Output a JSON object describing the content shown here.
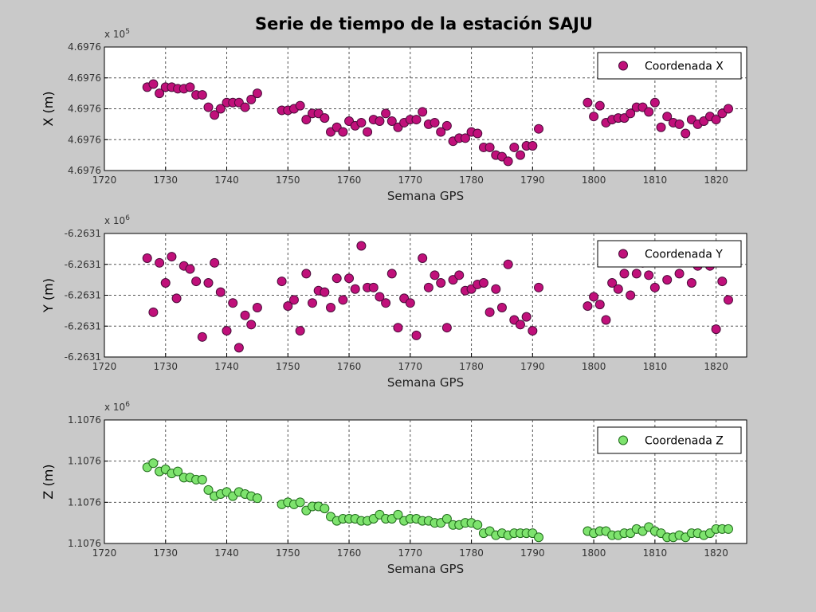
{
  "title": "Serie de tiempo de la estación SAJU",
  "colors": {
    "background": "#c9c9c9",
    "plot_bg": "#ffffff",
    "purple": "#c0107a",
    "purple_edge": "#4a0d3a",
    "green": "#7ee36e",
    "green_edge": "#1f6b1a",
    "grid": "#555555"
  },
  "chart_data": [
    {
      "type": "scatter",
      "id": "x",
      "xlabel": "Semana GPS",
      "ylabel": "X (m)",
      "exponent": {
        "base": "x 10",
        "power": "5"
      },
      "xlim": [
        1720,
        1825
      ],
      "x_ticks": [
        "1720",
        "1730",
        "1740",
        "1750",
        "1760",
        "1770",
        "1780",
        "1790",
        "1800",
        "1810",
        "1820"
      ],
      "ylim": [
        0,
        4
      ],
      "y_ticks": [
        "4.6976",
        "4.6976",
        "4.6976",
        "4.6976",
        "4.6976"
      ],
      "legend": {
        "label": "Coordenada X",
        "position": "top-right"
      },
      "series": [
        {
          "name": "Coordenada X",
          "color": "#c0107a",
          "points": [
            [
              1727,
              2.7
            ],
            [
              1728,
              2.8
            ],
            [
              1729,
              2.5
            ],
            [
              1730,
              2.7
            ],
            [
              1731,
              2.7
            ],
            [
              1732,
              2.65
            ],
            [
              1733,
              2.65
            ],
            [
              1734,
              2.7
            ],
            [
              1735,
              2.45
            ],
            [
              1736,
              2.45
            ],
            [
              1737,
              2.05
            ],
            [
              1738,
              1.8
            ],
            [
              1739,
              2.0
            ],
            [
              1740,
              2.2
            ],
            [
              1741,
              2.2
            ],
            [
              1742,
              2.2
            ],
            [
              1743,
              2.05
            ],
            [
              1744,
              2.3
            ],
            [
              1745,
              2.5
            ],
            [
              1749,
              1.95
            ],
            [
              1750,
              1.95
            ],
            [
              1751,
              2.0
            ],
            [
              1752,
              2.1
            ],
            [
              1753,
              1.65
            ],
            [
              1754,
              1.85
            ],
            [
              1755,
              1.85
            ],
            [
              1756,
              1.7
            ],
            [
              1757,
              1.25
            ],
            [
              1758,
              1.4
            ],
            [
              1759,
              1.25
            ],
            [
              1760,
              1.6
            ],
            [
              1761,
              1.45
            ],
            [
              1762,
              1.55
            ],
            [
              1763,
              1.25
            ],
            [
              1764,
              1.65
            ],
            [
              1765,
              1.6
            ],
            [
              1766,
              1.85
            ],
            [
              1767,
              1.6
            ],
            [
              1768,
              1.4
            ],
            [
              1769,
              1.55
            ],
            [
              1770,
              1.65
            ],
            [
              1771,
              1.65
            ],
            [
              1772,
              1.9
            ],
            [
              1773,
              1.5
            ],
            [
              1774,
              1.55
            ],
            [
              1775,
              1.25
            ],
            [
              1776,
              1.45
            ],
            [
              1777,
              0.95
            ],
            [
              1778,
              1.05
            ],
            [
              1779,
              1.05
            ],
            [
              1780,
              1.25
            ],
            [
              1781,
              1.2
            ],
            [
              1782,
              0.75
            ],
            [
              1783,
              0.75
            ],
            [
              1784,
              0.5
            ],
            [
              1785,
              0.45
            ],
            [
              1786,
              0.3
            ],
            [
              1787,
              0.75
            ],
            [
              1788,
              0.5
            ],
            [
              1789,
              0.8
            ],
            [
              1790,
              0.8
            ],
            [
              1791,
              1.35
            ],
            [
              1799,
              2.2
            ],
            [
              1800,
              1.75
            ],
            [
              1801,
              2.1
            ],
            [
              1802,
              1.55
            ],
            [
              1803,
              1.65
            ],
            [
              1804,
              1.7
            ],
            [
              1805,
              1.7
            ],
            [
              1806,
              1.85
            ],
            [
              1807,
              2.05
            ],
            [
              1808,
              2.05
            ],
            [
              1809,
              1.9
            ],
            [
              1810,
              2.2
            ],
            [
              1811,
              1.4
            ],
            [
              1812,
              1.75
            ],
            [
              1813,
              1.55
            ],
            [
              1814,
              1.5
            ],
            [
              1815,
              1.2
            ],
            [
              1816,
              1.65
            ],
            [
              1817,
              1.5
            ],
            [
              1818,
              1.6
            ],
            [
              1819,
              1.75
            ],
            [
              1820,
              1.65
            ],
            [
              1821,
              1.85
            ],
            [
              1822,
              2.0
            ]
          ]
        }
      ]
    },
    {
      "type": "scatter",
      "id": "y",
      "xlabel": "Semana GPS",
      "ylabel": "Y (m)",
      "exponent": {
        "base": "x 10",
        "power": "6"
      },
      "xlim": [
        1720,
        1825
      ],
      "x_ticks": [
        "1720",
        "1730",
        "1740",
        "1750",
        "1760",
        "1770",
        "1780",
        "1790",
        "1800",
        "1810",
        "1820"
      ],
      "ylim": [
        0,
        4
      ],
      "y_ticks": [
        "-6.2631",
        "-6.2631",
        "-6.2631",
        "-6.2631",
        "-6.2631"
      ],
      "legend": {
        "label": "Coordenada Y",
        "position": "top-right"
      },
      "series": [
        {
          "name": "Coordenada Y",
          "color": "#c0107a",
          "points": [
            [
              1727,
              3.2
            ],
            [
              1728,
              1.45
            ],
            [
              1729,
              3.05
            ],
            [
              1730,
              2.4
            ],
            [
              1731,
              3.25
            ],
            [
              1731.8,
              1.9
            ],
            [
              1733,
              2.95
            ],
            [
              1734,
              2.85
            ],
            [
              1735,
              2.45
            ],
            [
              1736,
              0.65
            ],
            [
              1737,
              2.4
            ],
            [
              1738,
              3.05
            ],
            [
              1739,
              2.1
            ],
            [
              1740,
              0.85
            ],
            [
              1741,
              1.75
            ],
            [
              1742,
              0.3
            ],
            [
              1743,
              1.35
            ],
            [
              1744,
              1.05
            ],
            [
              1745,
              1.6
            ],
            [
              1749,
              2.45
            ],
            [
              1750,
              1.65
            ],
            [
              1751,
              1.85
            ],
            [
              1752,
              0.85
            ],
            [
              1753,
              2.7
            ],
            [
              1754,
              1.75
            ],
            [
              1755,
              2.15
            ],
            [
              1756,
              2.1
            ],
            [
              1757,
              1.6
            ],
            [
              1758,
              2.55
            ],
            [
              1759,
              1.85
            ],
            [
              1760,
              2.55
            ],
            [
              1761,
              2.2
            ],
            [
              1762,
              3.6
            ],
            [
              1763,
              2.25
            ],
            [
              1764,
              2.25
            ],
            [
              1765,
              1.95
            ],
            [
              1766,
              1.75
            ],
            [
              1767,
              2.7
            ],
            [
              1768,
              0.95
            ],
            [
              1769,
              1.9
            ],
            [
              1770,
              1.75
            ],
            [
              1771,
              0.7
            ],
            [
              1772,
              3.2
            ],
            [
              1773,
              2.25
            ],
            [
              1774,
              2.65
            ],
            [
              1775,
              2.4
            ],
            [
              1776,
              0.95
            ],
            [
              1777,
              2.5
            ],
            [
              1778,
              2.65
            ],
            [
              1779,
              2.15
            ],
            [
              1780,
              2.2
            ],
            [
              1781,
              2.35
            ],
            [
              1782,
              2.4
            ],
            [
              1783,
              1.45
            ],
            [
              1784,
              2.2
            ],
            [
              1785,
              1.6
            ],
            [
              1786,
              3.0
            ],
            [
              1787,
              1.2
            ],
            [
              1788,
              1.05
            ],
            [
              1789,
              1.3
            ],
            [
              1790,
              0.85
            ],
            [
              1791,
              2.25
            ],
            [
              1799,
              1.65
            ],
            [
              1800,
              1.95
            ],
            [
              1801,
              1.7
            ],
            [
              1802,
              1.2
            ],
            [
              1803,
              2.4
            ],
            [
              1804,
              2.2
            ],
            [
              1805,
              2.7
            ],
            [
              1806,
              2.0
            ],
            [
              1807,
              2.7
            ],
            [
              1808,
              3.05
            ],
            [
              1809,
              2.65
            ],
            [
              1810,
              2.25
            ],
            [
              1812,
              2.5
            ],
            [
              1814,
              2.7
            ],
            [
              1816,
              2.4
            ],
            [
              1817,
              2.95
            ],
            [
              1819,
              2.95
            ],
            [
              1820,
              0.9
            ],
            [
              1821,
              2.45
            ],
            [
              1822,
              1.85
            ]
          ]
        }
      ]
    },
    {
      "type": "scatter",
      "id": "z",
      "xlabel": "Semana GPS",
      "ylabel": "Z (m)",
      "exponent": {
        "base": "x 10",
        "power": "6"
      },
      "xlim": [
        1720,
        1825
      ],
      "x_ticks": [
        "1720",
        "1730",
        "1740",
        "1750",
        "1760",
        "1770",
        "1780",
        "1790",
        "1800",
        "1810",
        "1820"
      ],
      "ylim": [
        0,
        3
      ],
      "y_ticks": [
        "1.1076",
        "1.1076",
        "1.1076",
        "1.1076"
      ],
      "legend": {
        "label": "Coordenada Z",
        "position": "top-right"
      },
      "series": [
        {
          "name": "Coordenada Z",
          "color": "#7ee36e",
          "points": [
            [
              1727,
              1.85
            ],
            [
              1728,
              1.95
            ],
            [
              1729,
              1.75
            ],
            [
              1730,
              1.8
            ],
            [
              1731,
              1.7
            ],
            [
              1732,
              1.75
            ],
            [
              1733,
              1.6
            ],
            [
              1734,
              1.6
            ],
            [
              1735,
              1.55
            ],
            [
              1736,
              1.55
            ],
            [
              1737,
              1.3
            ],
            [
              1738,
              1.15
            ],
            [
              1739,
              1.2
            ],
            [
              1740,
              1.25
            ],
            [
              1741,
              1.15
            ],
            [
              1742,
              1.25
            ],
            [
              1743,
              1.2
            ],
            [
              1744,
              1.15
            ],
            [
              1745,
              1.1
            ],
            [
              1749,
              0.95
            ],
            [
              1750,
              1.0
            ],
            [
              1751,
              0.95
            ],
            [
              1752,
              1.0
            ],
            [
              1753,
              0.8
            ],
            [
              1754,
              0.9
            ],
            [
              1755,
              0.9
            ],
            [
              1756,
              0.85
            ],
            [
              1757,
              0.65
            ],
            [
              1758,
              0.55
            ],
            [
              1759,
              0.6
            ],
            [
              1760,
              0.6
            ],
            [
              1761,
              0.6
            ],
            [
              1762,
              0.55
            ],
            [
              1763,
              0.55
            ],
            [
              1764,
              0.6
            ],
            [
              1765,
              0.7
            ],
            [
              1766,
              0.6
            ],
            [
              1767,
              0.6
            ],
            [
              1768,
              0.7
            ],
            [
              1769,
              0.55
            ],
            [
              1770,
              0.6
            ],
            [
              1771,
              0.6
            ],
            [
              1772,
              0.55
            ],
            [
              1773,
              0.55
            ],
            [
              1774,
              0.5
            ],
            [
              1775,
              0.5
            ],
            [
              1776,
              0.6
            ],
            [
              1777,
              0.45
            ],
            [
              1778,
              0.45
            ],
            [
              1779,
              0.5
            ],
            [
              1780,
              0.5
            ],
            [
              1781,
              0.45
            ],
            [
              1782,
              0.25
            ],
            [
              1783,
              0.3
            ],
            [
              1784,
              0.2
            ],
            [
              1785,
              0.25
            ],
            [
              1786,
              0.2
            ],
            [
              1787,
              0.25
            ],
            [
              1788,
              0.25
            ],
            [
              1789,
              0.25
            ],
            [
              1790,
              0.25
            ],
            [
              1791,
              0.15
            ],
            [
              1799,
              0.3
            ],
            [
              1800,
              0.25
            ],
            [
              1801,
              0.3
            ],
            [
              1802,
              0.3
            ],
            [
              1803,
              0.2
            ],
            [
              1804,
              0.2
            ],
            [
              1805,
              0.25
            ],
            [
              1806,
              0.25
            ],
            [
              1807,
              0.35
            ],
            [
              1808,
              0.3
            ],
            [
              1809,
              0.4
            ],
            [
              1810,
              0.3
            ],
            [
              1811,
              0.25
            ],
            [
              1812,
              0.15
            ],
            [
              1813,
              0.15
            ],
            [
              1814,
              0.2
            ],
            [
              1815,
              0.15
            ],
            [
              1816,
              0.25
            ],
            [
              1817,
              0.25
            ],
            [
              1818,
              0.2
            ],
            [
              1819,
              0.25
            ],
            [
              1820,
              0.35
            ],
            [
              1821,
              0.35
            ],
            [
              1822,
              0.35
            ]
          ]
        }
      ]
    }
  ]
}
